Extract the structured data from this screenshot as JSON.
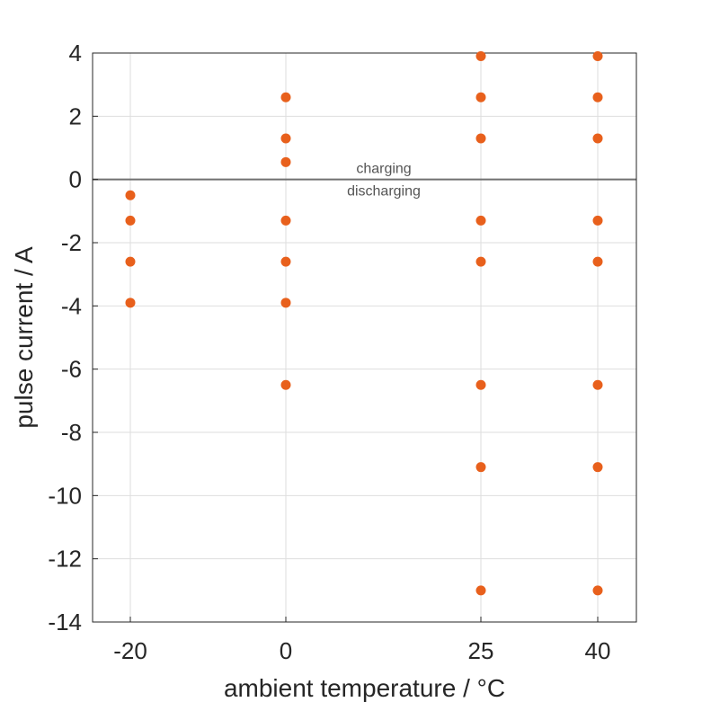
{
  "chart_data": {
    "type": "scatter",
    "xlabel": "ambient temperature / °C",
    "ylabel": "pulse current / A",
    "x_ticks": [
      "-20",
      "0",
      "25",
      "40"
    ],
    "y_ticks": [
      "4",
      "2",
      "0",
      "-2",
      "-4",
      "-6",
      "-8",
      "-10",
      "-12",
      "-14"
    ],
    "ylim": [
      -14,
      4
    ],
    "grid": true,
    "marker_color": "#E8601C",
    "zero_line_color": "#707070",
    "annotations": {
      "above": "charging",
      "below": "discharging"
    },
    "points": [
      {
        "x": -20,
        "y": -0.5
      },
      {
        "x": -20,
        "y": -1.3
      },
      {
        "x": -20,
        "y": -2.6
      },
      {
        "x": -20,
        "y": -3.9
      },
      {
        "x": 0,
        "y": 2.6
      },
      {
        "x": 0,
        "y": 1.3
      },
      {
        "x": 0,
        "y": 0.55
      },
      {
        "x": 0,
        "y": -1.3
      },
      {
        "x": 0,
        "y": -2.6
      },
      {
        "x": 0,
        "y": -3.9
      },
      {
        "x": 0,
        "y": -6.5
      },
      {
        "x": 25,
        "y": 3.9
      },
      {
        "x": 25,
        "y": 2.6
      },
      {
        "x": 25,
        "y": 1.3
      },
      {
        "x": 25,
        "y": -1.3
      },
      {
        "x": 25,
        "y": -2.6
      },
      {
        "x": 25,
        "y": -6.5
      },
      {
        "x": 25,
        "y": -9.1
      },
      {
        "x": 25,
        "y": -13.0
      },
      {
        "x": 40,
        "y": 3.9
      },
      {
        "x": 40,
        "y": 2.6
      },
      {
        "x": 40,
        "y": 1.3
      },
      {
        "x": 40,
        "y": -1.3
      },
      {
        "x": 40,
        "y": -2.6
      },
      {
        "x": 40,
        "y": -6.5
      },
      {
        "x": 40,
        "y": -9.1
      },
      {
        "x": 40,
        "y": -13.0
      }
    ]
  }
}
